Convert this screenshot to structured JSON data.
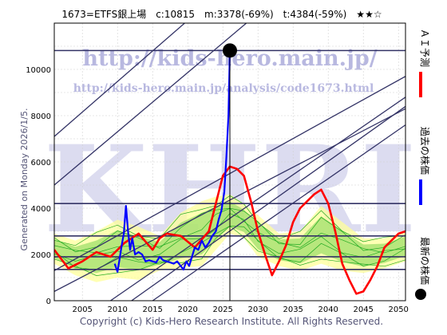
{
  "header": {
    "title": "1673=ETFS銀上場　c:10815　m:3378(-69%)　t:4384(-59%)　★★☆"
  },
  "side_label": "Generated on Monday 2026/1/5.",
  "copyright": "Copyright (c) Kids-Hero Research Institute. All Rights Reserved.",
  "watermark": {
    "url_main": "http://kids-hero.main.jp/",
    "url_sub": "http://kids-hero.main.jp/analysis/code1673.html",
    "logo": "KHRI"
  },
  "legend": {
    "ai_forecast": "ＡＩ予測",
    "past_price": "過去の株価",
    "latest_price": "最新の株価"
  },
  "colors": {
    "ai_forecast": "#ff0000",
    "past_price": "#0000ff",
    "latest_price": "#000000",
    "trend_lines": "#333366",
    "band_fill_yellow": "#ffff99",
    "band_fill_green": "#99dd66",
    "band_lines": "#22aa22"
  },
  "chart_data": {
    "type": "line",
    "xlim": [
      2001,
      2051
    ],
    "ylim": [
      0,
      12000
    ],
    "x_ticks": [
      2005,
      2010,
      2015,
      2020,
      2025,
      2030,
      2035,
      2040,
      2045,
      2050
    ],
    "y_ticks": [
      0,
      2000,
      4000,
      6000,
      8000,
      10000
    ],
    "grid": true,
    "latest": {
      "x": 2026.0,
      "y": 10815
    },
    "horizontal_lines": [
      10815,
      4200,
      2800,
      1900,
      1350
    ],
    "trend_lines": [
      {
        "x": [
          2001,
          2051
        ],
        "y": [
          7100,
          20300
        ]
      },
      {
        "x": [
          2001,
          2051
        ],
        "y": [
          5000,
          17800
        ]
      },
      {
        "x": [
          2001,
          2051
        ],
        "y": [
          1300,
          9700
        ]
      },
      {
        "x": [
          2001,
          2051
        ],
        "y": [
          400,
          8300
        ]
      },
      {
        "x": [
          2009,
          2051
        ],
        "y": [
          0,
          8800
        ]
      },
      {
        "x": [
          2012,
          2051
        ],
        "y": [
          0,
          8400
        ]
      },
      {
        "x": [
          2015,
          2051
        ],
        "y": [
          0,
          7600
        ]
      }
    ],
    "band": {
      "x": [
        2001,
        2004,
        2007,
        2010,
        2013,
        2016,
        2019,
        2022,
        2024,
        2026,
        2028,
        2030,
        2033,
        2036,
        2039,
        2042,
        2045,
        2048,
        2051
      ],
      "lower": [
        1600,
        1100,
        800,
        1000,
        900,
        1300,
        1400,
        1500,
        2200,
        2900,
        2700,
        1900,
        1500,
        1300,
        1600,
        1300,
        1200,
        1400,
        1700
      ],
      "upper": [
        2900,
        2600,
        3000,
        3500,
        3200,
        2800,
        3800,
        4300,
        4500,
        4600,
        4200,
        3700,
        2900,
        3000,
        4100,
        3400,
        2700,
        2700,
        3000
      ]
    },
    "series": [
      {
        "name": "ＡＩ予測",
        "x": [
          2001,
          2003,
          2005,
          2007,
          2009,
          2011,
          2013,
          2015,
          2016,
          2017,
          2019,
          2021,
          2023,
          2024,
          2025,
          2026,
          2027,
          2028,
          2029,
          2030,
          2031,
          2032,
          2033,
          2034,
          2035,
          2036,
          2037,
          2038,
          2039,
          2040,
          2041,
          2042,
          2043,
          2044,
          2045,
          2046,
          2047,
          2048,
          2049,
          2050,
          2051
        ],
        "y": [
          2200,
          1400,
          1700,
          2100,
          1900,
          2500,
          2900,
          2200,
          2700,
          2900,
          2800,
          2300,
          3000,
          4200,
          5400,
          5800,
          5700,
          5400,
          4300,
          3000,
          2000,
          1100,
          1700,
          2400,
          3400,
          4000,
          4300,
          4600,
          4800,
          4200,
          3000,
          1600,
          900,
          300,
          400,
          900,
          1500,
          2300,
          2600,
          2900,
          3000
        ]
      },
      {
        "name": "過去の株価",
        "x": [
          2009.6,
          2010.0,
          2010.3,
          2010.6,
          2010.9,
          2011.2,
          2011.5,
          2011.8,
          2012.1,
          2012.5,
          2013.0,
          2013.5,
          2014.0,
          2014.5,
          2015.0,
          2015.5,
          2016.0,
          2016.5,
          2017.0,
          2017.5,
          2018.0,
          2018.5,
          2019.0,
          2019.4,
          2019.8,
          2020.2,
          2020.6,
          2021.0,
          2021.5,
          2022.0,
          2022.5,
          2023.0,
          2023.5,
          2024.0,
          2024.4,
          2024.8,
          2025.2,
          2025.5,
          2025.8,
          2026.0
        ],
        "y": [
          1600,
          1250,
          1800,
          2400,
          2900,
          4100,
          3000,
          2200,
          2700,
          2000,
          2100,
          2000,
          1700,
          1750,
          1700,
          1650,
          1900,
          1750,
          1700,
          1650,
          1600,
          1700,
          1500,
          1350,
          1700,
          1500,
          1900,
          2300,
          2200,
          2600,
          2300,
          2500,
          2800,
          3000,
          3500,
          3900,
          4700,
          6200,
          8000,
          10815
        ]
      }
    ]
  }
}
